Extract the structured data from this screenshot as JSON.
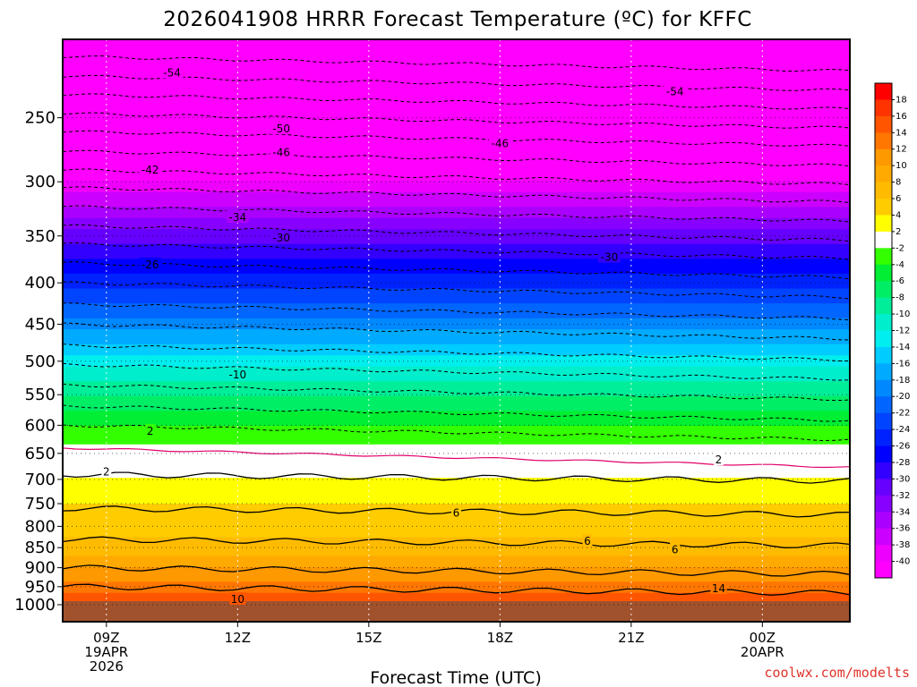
{
  "chart_data": {
    "type": "heatmap",
    "title": "2026041908 HRRR Forecast Temperature (ºC) for KFFC",
    "xlabel": "Forecast Time (UTC)",
    "ylabel": "",
    "x_ticks": [
      {
        "hour": 9,
        "l1": "09Z",
        "l2": "19APR",
        "l3": "2026"
      },
      {
        "hour": 12,
        "l1": "12Z"
      },
      {
        "hour": 15,
        "l1": "15Z"
      },
      {
        "hour": 18,
        "l1": "18Z"
      },
      {
        "hour": 21,
        "l1": "21Z"
      },
      {
        "hour": 24,
        "l1": "00Z",
        "l2": "20APR"
      }
    ],
    "xlim": [
      8,
      26
    ],
    "y_ticks": [
      250,
      300,
      350,
      400,
      450,
      500,
      550,
      600,
      650,
      700,
      750,
      800,
      850,
      900,
      950,
      1000
    ],
    "ylim_hpa": [
      1000,
      200
    ],
    "colorbar_levels": [
      18,
      16,
      14,
      12,
      10,
      8,
      6,
      4,
      2,
      -2,
      -4,
      -6,
      -8,
      -10,
      -12,
      -14,
      -16,
      -18,
      -20,
      -22,
      -24,
      -26,
      -28,
      -30,
      -32,
      -34,
      -36,
      -38,
      -40
    ],
    "colorbar_colors": [
      "#ff0000",
      "#ff3300",
      "#ff5500",
      "#ff7700",
      "#ff9900",
      "#ffaa00",
      "#ffbb00",
      "#ffcc00",
      "#ffff00",
      "#ffffff",
      "#33ff00",
      "#00ee33",
      "#00ee66",
      "#00ee99",
      "#00eecc",
      "#00eeee",
      "#00ccff",
      "#00aaff",
      "#0088ff",
      "#0066ff",
      "#0044ff",
      "#0022ff",
      "#0000ff",
      "#3300ff",
      "#6600ff",
      "#8800ff",
      "#aa00ff",
      "#cc00ff",
      "#ee00ff",
      "#ff00ff"
    ],
    "temperature_profile": [
      {
        "hpa": 1000,
        "t": 16
      },
      {
        "hpa": 950,
        "t": 13
      },
      {
        "hpa": 900,
        "t": 10
      },
      {
        "hpa": 850,
        "t": 7
      },
      {
        "hpa": 800,
        "t": 5
      },
      {
        "hpa": 750,
        "t": 4
      },
      {
        "hpa": 700,
        "t": 2
      },
      {
        "hpa": 650,
        "t": -1
      },
      {
        "hpa": 600,
        "t": -4
      },
      {
        "hpa": 550,
        "t": -8
      },
      {
        "hpa": 500,
        "t": -13
      },
      {
        "hpa": 450,
        "t": -19
      },
      {
        "hpa": 400,
        "t": -25
      },
      {
        "hpa": 350,
        "t": -31
      },
      {
        "hpa": 300,
        "t": -40
      },
      {
        "hpa": 250,
        "t": -49
      },
      {
        "hpa": 200,
        "t": -57
      }
    ],
    "contour_labels": [
      {
        "text": "-54",
        "hour": 10.5,
        "hpa": 220
      },
      {
        "text": "-54",
        "hour": 22.0,
        "hpa": 232
      },
      {
        "text": "-50",
        "hour": 13.0,
        "hpa": 258
      },
      {
        "text": "-46",
        "hour": 13.0,
        "hpa": 276
      },
      {
        "text": "-46",
        "hour": 18.0,
        "hpa": 269
      },
      {
        "text": "-42",
        "hour": 10.0,
        "hpa": 290
      },
      {
        "text": "-34",
        "hour": 12.0,
        "hpa": 332
      },
      {
        "text": "-30",
        "hour": 13.0,
        "hpa": 352
      },
      {
        "text": "-30",
        "hour": 20.5,
        "hpa": 372
      },
      {
        "text": "-26",
        "hour": 10.0,
        "hpa": 380
      },
      {
        "text": "-10",
        "hour": 12.0,
        "hpa": 520
      },
      {
        "text": "2",
        "hour": 10.0,
        "hpa": 610
      },
      {
        "text": "2",
        "hour": 9.0,
        "hpa": 685
      },
      {
        "text": "2",
        "hour": 23.0,
        "hpa": 662
      },
      {
        "text": "6",
        "hour": 17.0,
        "hpa": 770
      },
      {
        "text": "6",
        "hour": 20.0,
        "hpa": 835
      },
      {
        "text": "6",
        "hour": 22.0,
        "hpa": 855
      },
      {
        "text": "10",
        "hour": 12.0,
        "hpa": 985
      },
      {
        "text": "14",
        "hour": 23.0,
        "hpa": 955
      }
    ],
    "credit": "coolwx.com/modelts"
  }
}
